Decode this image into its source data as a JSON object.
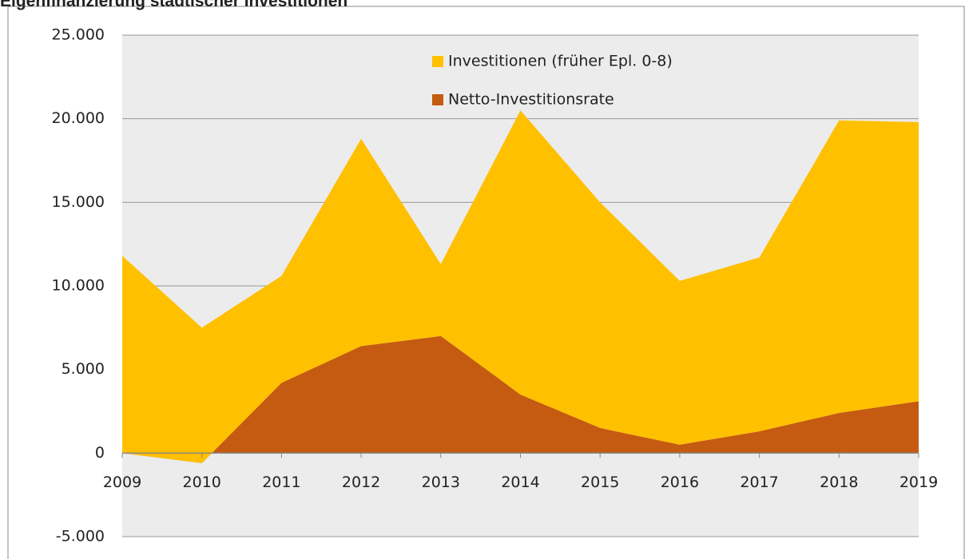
{
  "chart_data": {
    "type": "stacked_area",
    "title": "Eigenfinanzierung städtischer Investitionen",
    "categories": [
      "2009",
      "2010",
      "2011",
      "2012",
      "2013",
      "2014",
      "2015",
      "2016",
      "2017",
      "2018",
      "2019"
    ],
    "series": [
      {
        "name": "Netto-Investitionsrate",
        "color": "#c55a11",
        "values": [
          0,
          -600,
          4200,
          6400,
          7000,
          3500,
          1500,
          500,
          1300,
          2400,
          3100
        ]
      },
      {
        "name": "Investitionen (früher Epl. 0-8)",
        "color": "#ffc000",
        "values": [
          11800,
          8100,
          6400,
          12400,
          4300,
          17000,
          13500,
          9800,
          10400,
          17500,
          16700
        ]
      }
    ],
    "ylim": [
      -5000,
      25000
    ],
    "yticks": [
      {
        "value": -5000,
        "label": "-5.000"
      },
      0,
      {
        "value": 5000,
        "label": "5.000"
      },
      {
        "value": 10000,
        "label": "10.000"
      },
      {
        "value": 15000,
        "label": "15.000"
      },
      {
        "value": 20000,
        "label": "20.000"
      },
      {
        "value": 25000,
        "label": "25.000"
      }
    ],
    "grid": true,
    "legend": "top"
  }
}
